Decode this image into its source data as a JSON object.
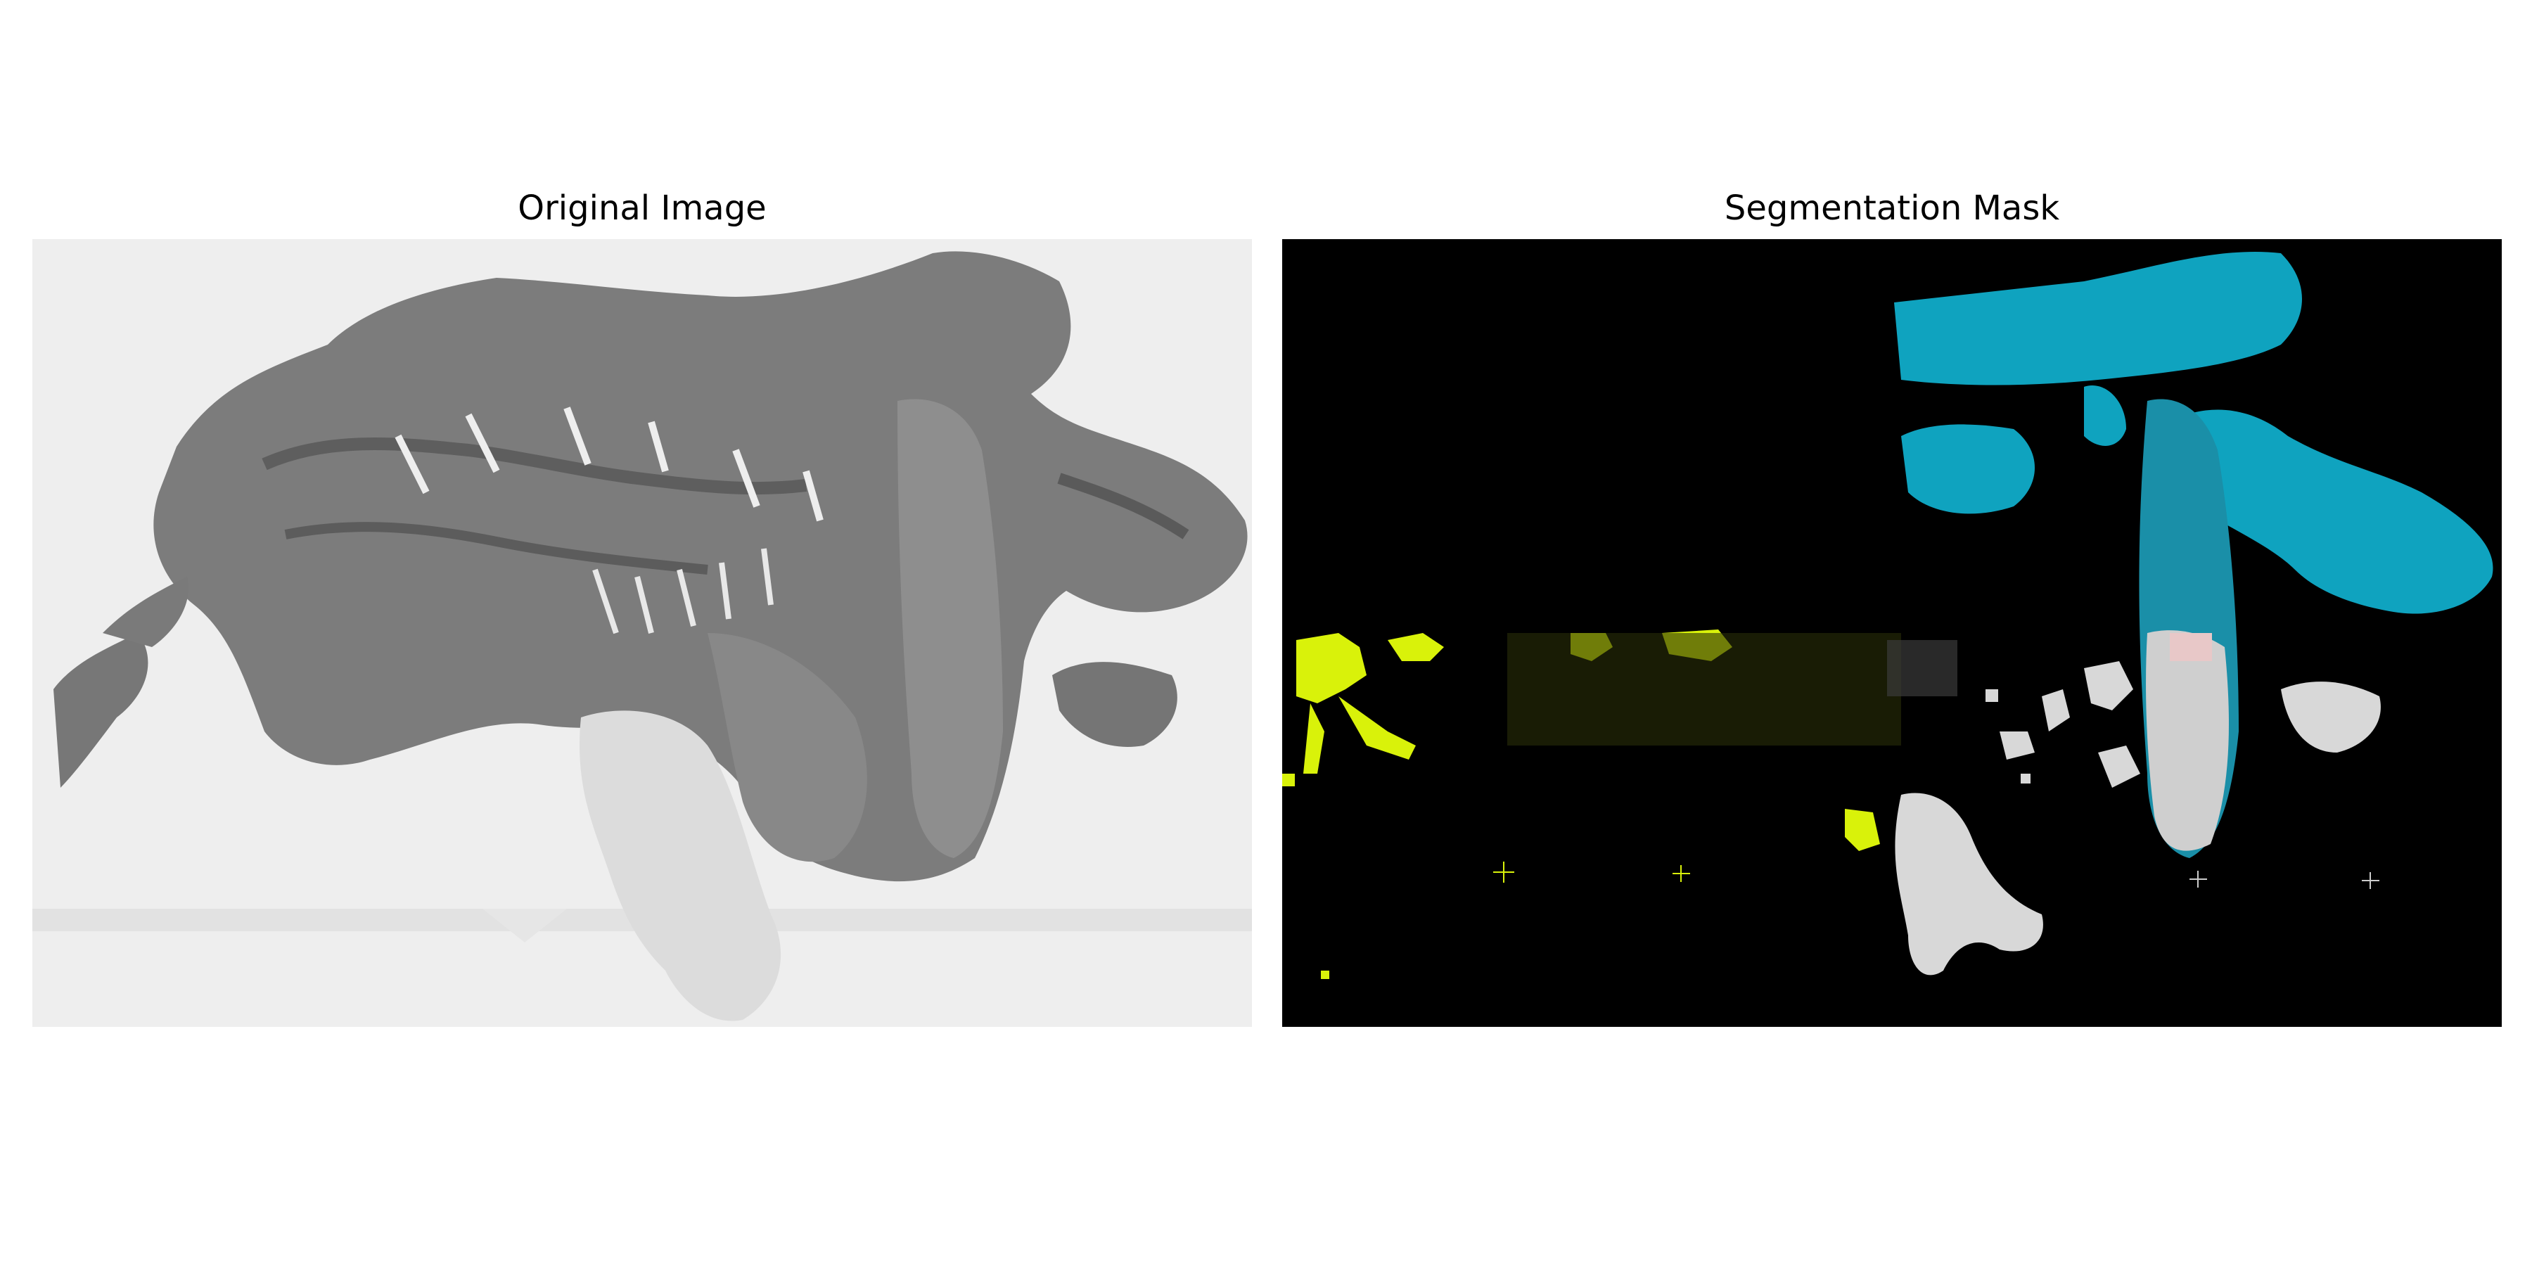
{
  "figure": {
    "left_title": "Original Image",
    "right_title": "Segmentation Mask"
  },
  "colors": {
    "page_background": "#ffffff",
    "slide_background": "#eeeeee",
    "tissue_dark": "#6e6e6e",
    "tissue_mid": "#8a8a8a",
    "tissue_light": "#d8d8d8",
    "mask_background": "#000000",
    "mask_cyan": "#0fa3bf",
    "mask_yellow": "#d9f20a",
    "mask_white": "#d8d8d8",
    "mask_pink": "#e8c8c8"
  }
}
